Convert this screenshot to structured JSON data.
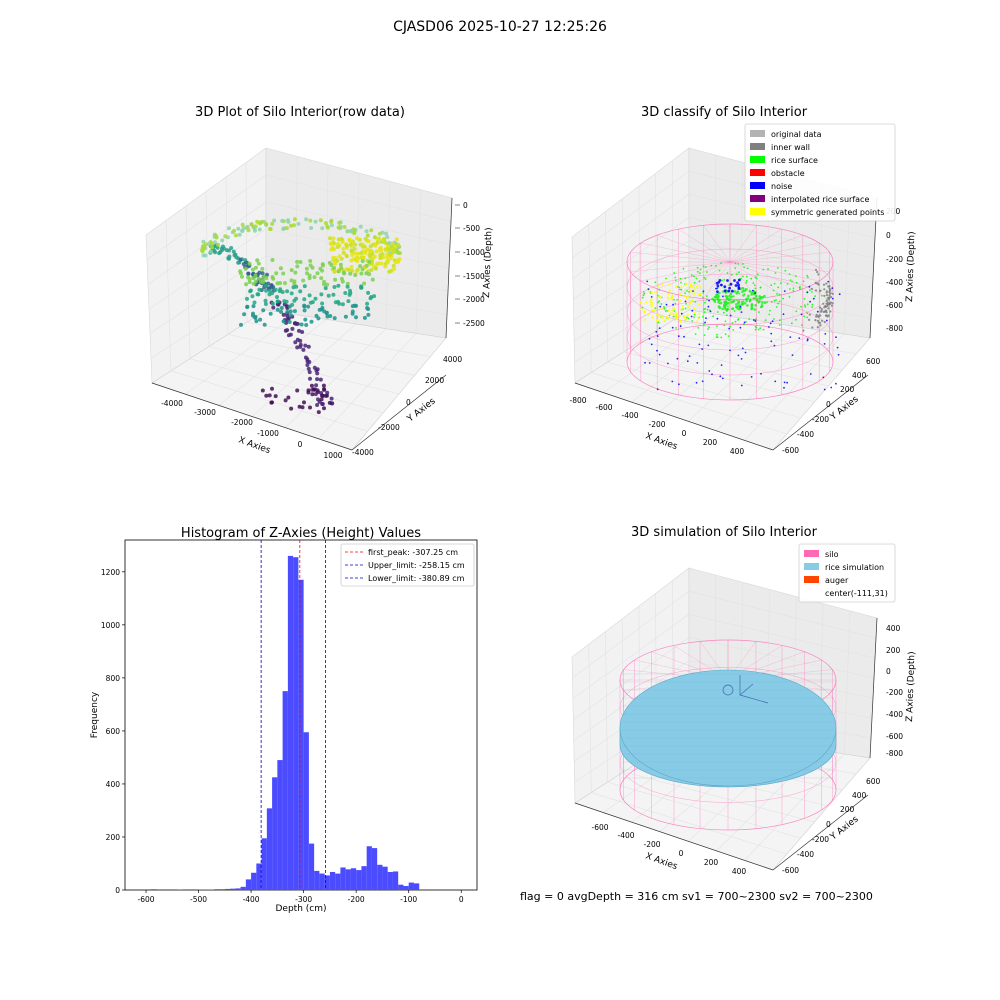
{
  "figure_title": "CJASD06 2025-10-27 12:25:26",
  "status_line": "flag = 0     avgDepth = 316 cm  sv1 = 700~2300  sv2 = 700~2300",
  "colors": {
    "hist_bar": "#4b4bff",
    "first_peak_line": "#ff0000",
    "limit_lines": "#0000cc",
    "silo": "#ff69b4",
    "rice": "#87cbe6",
    "auger": "#ff4500",
    "original": "#b3b3b3",
    "inner_wall": "#808080",
    "rice_surface": "#00ff00",
    "obstacle": "#ff0000",
    "noise": "#0000ff",
    "interpolated": "#800080",
    "symmetric": "#ffff00"
  },
  "chart_data": [
    {
      "type": "scatter",
      "title": "3D Plot of Silo Interior(row data)",
      "xlabel": "X Axies",
      "ylabel": "Y Axies",
      "zlabel": "Z Axies (Depth)",
      "x_ticks": [
        "-4000",
        "-3000",
        "-2000",
        "-1000",
        "0",
        "1000"
      ],
      "y_ticks": [
        "-4000",
        "-2000",
        "0",
        "2000",
        "4000"
      ],
      "z_ticks": [
        "0",
        "-500",
        "-1000",
        "-1500",
        "-2000",
        "-2500"
      ]
    },
    {
      "type": "scatter",
      "title": "3D classify of Silo Interior",
      "xlabel": "X Axies",
      "ylabel": "Y Axies",
      "zlabel": "Z Axies (Depth)",
      "x_ticks": [
        "-800",
        "-600",
        "-400",
        "-200",
        "0",
        "200",
        "400"
      ],
      "y_ticks": [
        "-600",
        "-400",
        "-200",
        "0",
        "200",
        "400",
        "600"
      ],
      "z_ticks": [
        "200",
        "0",
        "-200",
        "-400",
        "-600",
        "-800"
      ],
      "legend": [
        "original data",
        "inner wall",
        "rice surface",
        "obstacle",
        "noise",
        "interpolated rice surface",
        "symmetric generated points"
      ],
      "legend_position": "top-right"
    },
    {
      "type": "bar",
      "title": "Histogram of Z-Axies (Height) Values",
      "xlabel": "Depth (cm)",
      "ylabel": "Frequency",
      "xlim": [
        -640,
        30
      ],
      "ylim": [
        0,
        1320
      ],
      "x_ticks": [
        -600,
        -500,
        -400,
        -300,
        -200,
        -100,
        0
      ],
      "y_ticks": [
        0,
        200,
        400,
        600,
        800,
        1000,
        1200
      ],
      "bin_width": 10,
      "bins": [
        [
          -590,
          3
        ],
        [
          -540,
          2
        ],
        [
          -500,
          2
        ],
        [
          -490,
          2
        ],
        [
          -480,
          2
        ],
        [
          -470,
          3
        ],
        [
          -460,
          3
        ],
        [
          -450,
          4
        ],
        [
          -440,
          5
        ],
        [
          -430,
          6
        ],
        [
          -420,
          12
        ],
        [
          -410,
          40
        ],
        [
          -400,
          65
        ],
        [
          -390,
          100
        ],
        [
          -380,
          195
        ],
        [
          -370,
          308
        ],
        [
          -360,
          425
        ],
        [
          -350,
          490
        ],
        [
          -340,
          750
        ],
        [
          -330,
          1260
        ],
        [
          -320,
          1255
        ],
        [
          -310,
          1170
        ],
        [
          -300,
          595
        ],
        [
          -290,
          175
        ],
        [
          -280,
          72
        ],
        [
          -270,
          62
        ],
        [
          -260,
          55
        ],
        [
          -250,
          68
        ],
        [
          -240,
          62
        ],
        [
          -230,
          85
        ],
        [
          -220,
          78
        ],
        [
          -210,
          82
        ],
        [
          -200,
          75
        ],
        [
          -190,
          90
        ],
        [
          -180,
          165
        ],
        [
          -170,
          158
        ],
        [
          -160,
          95
        ],
        [
          -150,
          88
        ],
        [
          -140,
          68
        ],
        [
          -130,
          70
        ],
        [
          -120,
          20
        ],
        [
          -110,
          15
        ],
        [
          -100,
          28
        ],
        [
          -90,
          25
        ]
      ],
      "vlines": [
        {
          "x": -307.25,
          "label": "first_peak: -307.25 cm"
        },
        {
          "x": -258.15,
          "label": "Upper_limit: -258.15 cm"
        },
        {
          "x": -380.89,
          "label": "Lower_limit: -380.89 cm"
        }
      ],
      "legend_position": "top-right"
    },
    {
      "type": "scatter",
      "title": "3D simulation of Silo Interior",
      "xlabel": "X Axies",
      "ylabel": "Y Axies",
      "zlabel": "Z Axies (Depth)",
      "x_ticks": [
        "-600",
        "-400",
        "-200",
        "0",
        "200",
        "400"
      ],
      "y_ticks": [
        "-600",
        "-400",
        "-200",
        "0",
        "200",
        "400",
        "600"
      ],
      "z_ticks": [
        "400",
        "200",
        "0",
        "-200",
        "-400",
        "-600",
        "-800"
      ],
      "legend": [
        "silo",
        "rice simulation",
        "auger",
        "center(-111,31)"
      ],
      "legend_position": "top-right"
    }
  ]
}
